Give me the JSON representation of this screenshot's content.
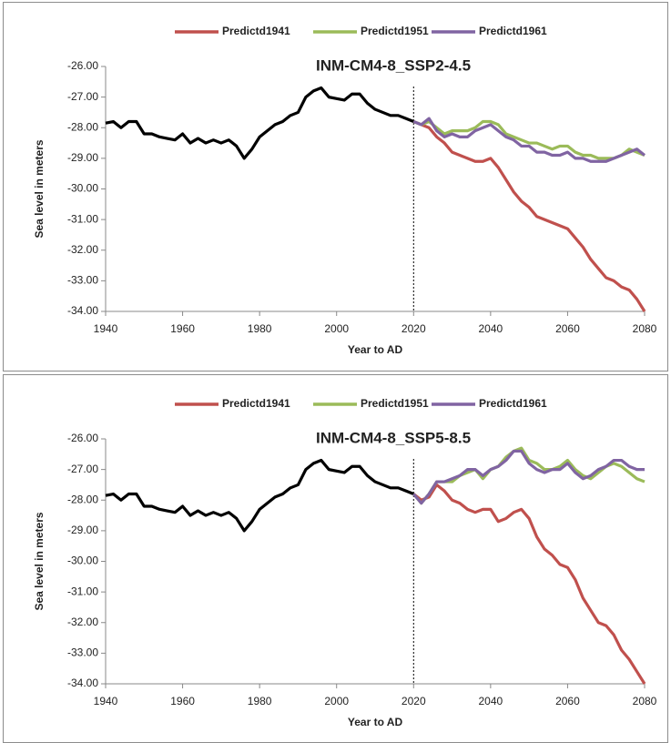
{
  "chart_data": [
    {
      "type": "line",
      "title": "INM-CM4-8_SSP2-4.5",
      "x_label": "Year to AD",
      "y_label": "Sea level in meters",
      "x": [
        1940,
        1942,
        1944,
        1946,
        1948,
        1950,
        1952,
        1954,
        1956,
        1958,
        1960,
        1962,
        1964,
        1966,
        1968,
        1970,
        1972,
        1974,
        1976,
        1978,
        1980,
        1982,
        1984,
        1986,
        1988,
        1990,
        1992,
        1994,
        1996,
        1998,
        2000,
        2002,
        2004,
        2006,
        2008,
        2010,
        2012,
        2014,
        2016,
        2018,
        2020,
        2022,
        2024,
        2026,
        2028,
        2030,
        2032,
        2034,
        2036,
        2038,
        2040,
        2042,
        2044,
        2046,
        2048,
        2050,
        2052,
        2054,
        2056,
        2058,
        2060,
        2062,
        2064,
        2066,
        2068,
        2070,
        2072,
        2074,
        2076,
        2078,
        2080
      ],
      "series": [
        {
          "color": "#000000",
          "values": [
            -27.85,
            -27.8,
            -28.0,
            -27.8,
            -27.8,
            -28.2,
            -28.2,
            -28.3,
            -28.35,
            -28.4,
            -28.2,
            -28.5,
            -28.35,
            -28.5,
            -28.4,
            -28.5,
            -28.4,
            -28.6,
            -29.0,
            -28.7,
            -28.3,
            -28.1,
            -27.9,
            -27.8,
            -27.6,
            -27.5,
            -27.0,
            -26.8,
            -26.7,
            -27.0,
            -27.05,
            -27.1,
            -26.9,
            -26.9,
            -27.2,
            -27.4,
            -27.5,
            -27.6,
            -27.6,
            -27.7,
            -27.8,
            null,
            null,
            null,
            null,
            null,
            null,
            null,
            null,
            null,
            null,
            null,
            null,
            null,
            null,
            null,
            null,
            null,
            null,
            null,
            null,
            null,
            null,
            null,
            null,
            null,
            null,
            null,
            null,
            null,
            null
          ]
        },
        {
          "name": "Predictd1941",
          "color": "#c0504d",
          "values": [
            null,
            null,
            null,
            null,
            null,
            null,
            null,
            null,
            null,
            null,
            null,
            null,
            null,
            null,
            null,
            null,
            null,
            null,
            null,
            null,
            null,
            null,
            null,
            null,
            null,
            null,
            null,
            null,
            null,
            null,
            null,
            null,
            null,
            null,
            null,
            null,
            null,
            null,
            null,
            null,
            -27.8,
            -27.9,
            -28.0,
            -28.3,
            -28.5,
            -28.8,
            -28.9,
            -29.0,
            -29.1,
            -29.1,
            -29.0,
            -29.3,
            -29.7,
            -30.1,
            -30.4,
            -30.6,
            -30.9,
            -31.0,
            -31.1,
            -31.2,
            -31.3,
            -31.6,
            -31.9,
            -32.3,
            -32.6,
            -32.9,
            -33.0,
            -33.2,
            -33.3,
            -33.6,
            -34.0
          ]
        },
        {
          "name": "Predictd1951",
          "color": "#9bbb59",
          "values": [
            null,
            null,
            null,
            null,
            null,
            null,
            null,
            null,
            null,
            null,
            null,
            null,
            null,
            null,
            null,
            null,
            null,
            null,
            null,
            null,
            null,
            null,
            null,
            null,
            null,
            null,
            null,
            null,
            null,
            null,
            null,
            null,
            null,
            null,
            null,
            null,
            null,
            null,
            null,
            null,
            -27.8,
            -27.9,
            -27.8,
            -28.0,
            -28.2,
            -28.1,
            -28.1,
            -28.1,
            -28.0,
            -27.8,
            -27.8,
            -27.9,
            -28.2,
            -28.3,
            -28.4,
            -28.5,
            -28.5,
            -28.6,
            -28.7,
            -28.6,
            -28.6,
            -28.8,
            -28.9,
            -28.9,
            -29.0,
            -29.0,
            -29.0,
            -28.9,
            -28.7,
            -28.8,
            -28.9
          ]
        },
        {
          "name": "Predictd1961",
          "color": "#8064a2",
          "values": [
            null,
            null,
            null,
            null,
            null,
            null,
            null,
            null,
            null,
            null,
            null,
            null,
            null,
            null,
            null,
            null,
            null,
            null,
            null,
            null,
            null,
            null,
            null,
            null,
            null,
            null,
            null,
            null,
            null,
            null,
            null,
            null,
            null,
            null,
            null,
            null,
            null,
            null,
            null,
            null,
            -27.8,
            -27.9,
            -27.7,
            -28.1,
            -28.3,
            -28.2,
            -28.3,
            -28.3,
            -28.1,
            -28.0,
            -27.9,
            -28.1,
            -28.3,
            -28.4,
            -28.6,
            -28.6,
            -28.8,
            -28.8,
            -28.9,
            -28.9,
            -28.8,
            -29.0,
            -29.0,
            -29.1,
            -29.1,
            -29.1,
            -29.0,
            -28.9,
            -28.8,
            -28.7,
            -28.9
          ]
        }
      ],
      "xlim": [
        1940,
        2080
      ],
      "xticks": [
        1940,
        1960,
        1980,
        2000,
        2020,
        2040,
        2060,
        2080
      ],
      "ylim": [
        -34,
        -26
      ],
      "yticks": [
        {
          "value": -26,
          "label": "-26.00"
        },
        {
          "value": -27,
          "label": "-27.00"
        },
        {
          "value": -28,
          "label": "-28.00"
        },
        {
          "value": -29,
          "label": "-29.00"
        },
        {
          "value": -30,
          "label": "-30.00"
        },
        {
          "value": -31,
          "label": "-31.00"
        },
        {
          "value": -32,
          "label": "-32.00"
        },
        {
          "value": -33,
          "label": "-33.00"
        },
        {
          "value": -34,
          "label": "-34.00"
        }
      ],
      "vline": 2020,
      "legend": "top",
      "grid": false
    },
    {
      "type": "line",
      "title": "INM-CM4-8_SSP5-8.5",
      "x_label": "Year to AD",
      "y_label": "Sea level in meters",
      "x": [
        1940,
        1942,
        1944,
        1946,
        1948,
        1950,
        1952,
        1954,
        1956,
        1958,
        1960,
        1962,
        1964,
        1966,
        1968,
        1970,
        1972,
        1974,
        1976,
        1978,
        1980,
        1982,
        1984,
        1986,
        1988,
        1990,
        1992,
        1994,
        1996,
        1998,
        2000,
        2002,
        2004,
        2006,
        2008,
        2010,
        2012,
        2014,
        2016,
        2018,
        2020,
        2022,
        2024,
        2026,
        2028,
        2030,
        2032,
        2034,
        2036,
        2038,
        2040,
        2042,
        2044,
        2046,
        2048,
        2050,
        2052,
        2054,
        2056,
        2058,
        2060,
        2062,
        2064,
        2066,
        2068,
        2070,
        2072,
        2074,
        2076,
        2078,
        2080
      ],
      "series": [
        {
          "color": "#000000",
          "values": [
            -27.85,
            -27.8,
            -28.0,
            -27.8,
            -27.8,
            -28.2,
            -28.2,
            -28.3,
            -28.35,
            -28.4,
            -28.2,
            -28.5,
            -28.35,
            -28.5,
            -28.4,
            -28.5,
            -28.4,
            -28.6,
            -29.0,
            -28.7,
            -28.3,
            -28.1,
            -27.9,
            -27.8,
            -27.6,
            -27.5,
            -27.0,
            -26.8,
            -26.7,
            -27.0,
            -27.05,
            -27.1,
            -26.9,
            -26.9,
            -27.2,
            -27.4,
            -27.5,
            -27.6,
            -27.6,
            -27.7,
            -27.8,
            null,
            null,
            null,
            null,
            null,
            null,
            null,
            null,
            null,
            null,
            null,
            null,
            null,
            null,
            null,
            null,
            null,
            null,
            null,
            null,
            null,
            null,
            null,
            null,
            null,
            null,
            null,
            null,
            null,
            null
          ]
        },
        {
          "name": "Predictd1941",
          "color": "#c0504d",
          "values": [
            null,
            null,
            null,
            null,
            null,
            null,
            null,
            null,
            null,
            null,
            null,
            null,
            null,
            null,
            null,
            null,
            null,
            null,
            null,
            null,
            null,
            null,
            null,
            null,
            null,
            null,
            null,
            null,
            null,
            null,
            null,
            null,
            null,
            null,
            null,
            null,
            null,
            null,
            null,
            null,
            -27.8,
            -28.0,
            -27.9,
            -27.5,
            -27.7,
            -28.0,
            -28.1,
            -28.3,
            -28.4,
            -28.3,
            -28.3,
            -28.7,
            -28.6,
            -28.4,
            -28.3,
            -28.6,
            -29.2,
            -29.6,
            -29.8,
            -30.1,
            -30.2,
            -30.6,
            -31.2,
            -31.6,
            -32.0,
            -32.1,
            -32.4,
            -32.9,
            -33.2,
            -33.6,
            -34.0
          ]
        },
        {
          "name": "Predictd1951",
          "color": "#9bbb59",
          "values": [
            null,
            null,
            null,
            null,
            null,
            null,
            null,
            null,
            null,
            null,
            null,
            null,
            null,
            null,
            null,
            null,
            null,
            null,
            null,
            null,
            null,
            null,
            null,
            null,
            null,
            null,
            null,
            null,
            null,
            null,
            null,
            null,
            null,
            null,
            null,
            null,
            null,
            null,
            null,
            null,
            -27.8,
            -28.1,
            -27.8,
            -27.4,
            -27.4,
            -27.4,
            -27.2,
            -27.1,
            -27.0,
            -27.3,
            -27.0,
            -26.9,
            -26.6,
            -26.4,
            -26.3,
            -26.7,
            -26.8,
            -27.0,
            -27.0,
            -26.9,
            -26.7,
            -27.0,
            -27.2,
            -27.3,
            -27.1,
            -26.9,
            -26.8,
            -26.9,
            -27.1,
            -27.3,
            -27.4
          ]
        },
        {
          "name": "Predictd1961",
          "color": "#8064a2",
          "values": [
            null,
            null,
            null,
            null,
            null,
            null,
            null,
            null,
            null,
            null,
            null,
            null,
            null,
            null,
            null,
            null,
            null,
            null,
            null,
            null,
            null,
            null,
            null,
            null,
            null,
            null,
            null,
            null,
            null,
            null,
            null,
            null,
            null,
            null,
            null,
            null,
            null,
            null,
            null,
            null,
            -27.8,
            -28.1,
            -27.8,
            -27.4,
            -27.4,
            -27.3,
            -27.2,
            -27.0,
            -27.0,
            -27.2,
            -27.0,
            -26.9,
            -26.7,
            -26.4,
            -26.4,
            -26.8,
            -27.0,
            -27.1,
            -27.0,
            -27.0,
            -26.8,
            -27.1,
            -27.3,
            -27.2,
            -27.0,
            -26.9,
            -26.7,
            -26.7,
            -26.9,
            -27.0,
            -27.0
          ]
        }
      ],
      "xlim": [
        1940,
        2080
      ],
      "xticks": [
        1940,
        1960,
        1980,
        2000,
        2020,
        2040,
        2060,
        2080
      ],
      "ylim": [
        -34,
        -26
      ],
      "yticks": [
        {
          "value": -26,
          "label": "-26.00"
        },
        {
          "value": -27,
          "label": "-27.00"
        },
        {
          "value": -28,
          "label": "-28.00"
        },
        {
          "value": -29,
          "label": "-29.00"
        },
        {
          "value": -30,
          "label": "-30.00"
        },
        {
          "value": -31,
          "label": "-31.00"
        },
        {
          "value": -32,
          "label": "-32.00"
        },
        {
          "value": -33,
          "label": "-33.00"
        },
        {
          "value": -34,
          "label": "-34.00"
        }
      ],
      "vline": 2020,
      "legend": "top",
      "grid": false
    }
  ]
}
